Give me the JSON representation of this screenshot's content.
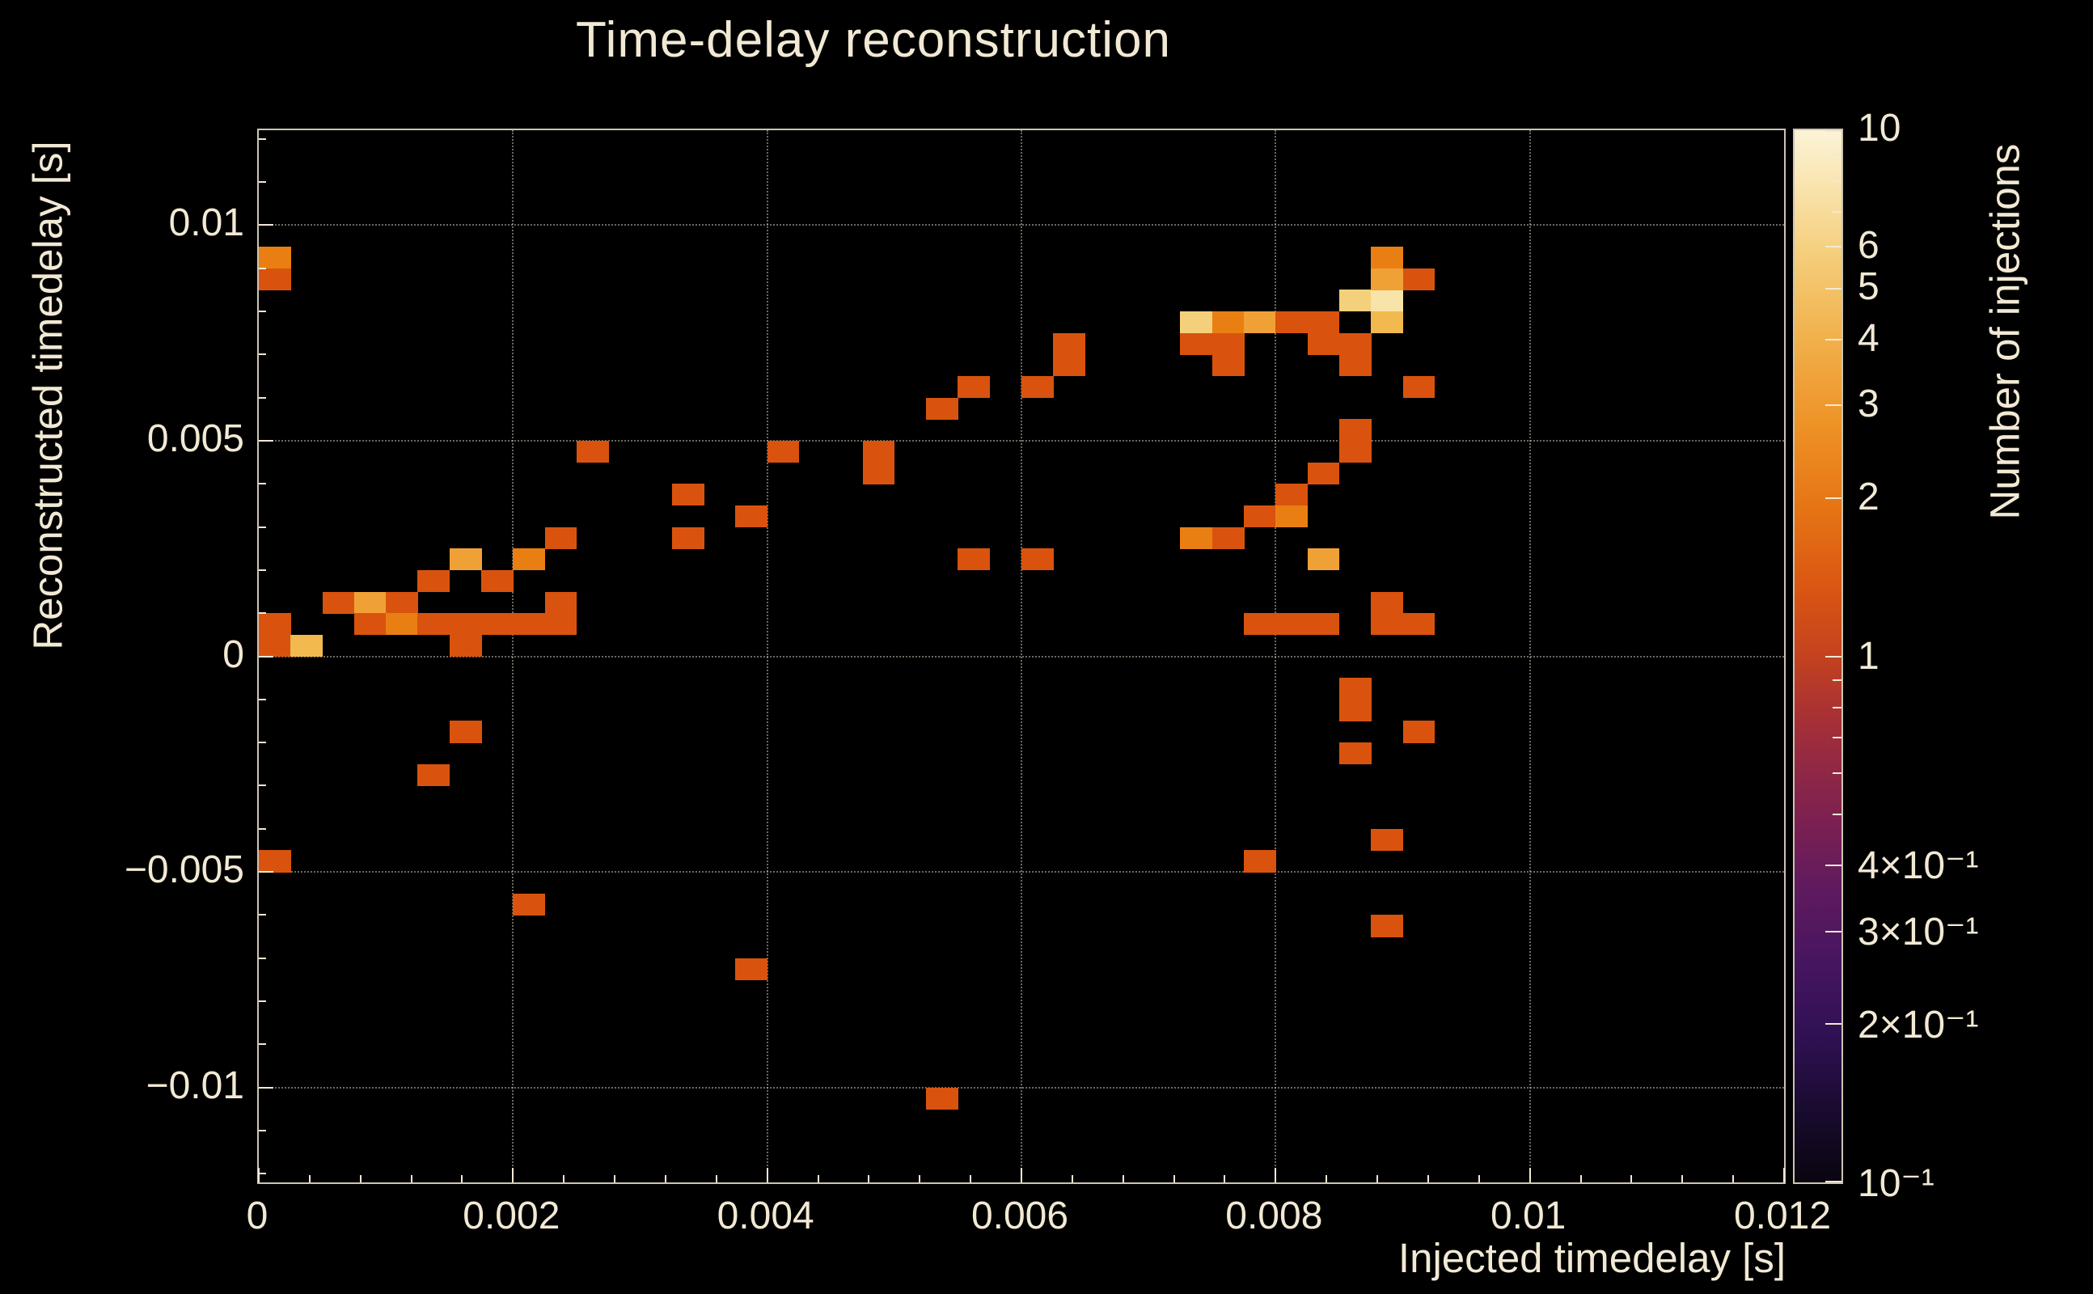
{
  "title": "Time-delay reconstruction",
  "axes": {
    "x": {
      "label": "Injected timedelay [s]",
      "ticks": [
        {
          "v": 0,
          "label": "0"
        },
        {
          "v": 0.002,
          "label": "0.002"
        },
        {
          "v": 0.004,
          "label": "0.004"
        },
        {
          "v": 0.006,
          "label": "0.006"
        },
        {
          "v": 0.008,
          "label": "0.008"
        },
        {
          "v": 0.01,
          "label": "0.01"
        },
        {
          "v": 0.012,
          "label": "0.012"
        }
      ]
    },
    "y": {
      "label": "Reconstructed timedelay [s]",
      "ticks": [
        {
          "v": 0.01,
          "label": "0.01"
        },
        {
          "v": 0.005,
          "label": "0.005"
        },
        {
          "v": 0,
          "label": "0"
        },
        {
          "v": -0.005,
          "label": "−0.005"
        },
        {
          "v": -0.01,
          "label": "−0.01"
        }
      ]
    }
  },
  "colorbar": {
    "label": "Number of injections",
    "scale": "log",
    "range": [
      0.1,
      10
    ],
    "ticks": [
      {
        "v": 10,
        "label": "10"
      },
      {
        "v": 6,
        "label": "6"
      },
      {
        "v": 5,
        "label": "5"
      },
      {
        "v": 4,
        "label": "4"
      },
      {
        "v": 3,
        "label": "3"
      },
      {
        "v": 2,
        "label": "2"
      },
      {
        "v": 1,
        "label": "1"
      },
      {
        "v": 0.4,
        "label": "4×10⁻¹"
      },
      {
        "v": 0.3,
        "label": "3×10⁻¹"
      },
      {
        "v": 0.2,
        "label": "2×10⁻¹"
      },
      {
        "v": 0.1,
        "label": "10⁻¹"
      }
    ],
    "gradient_stops": [
      [
        "0",
        "#0a0510"
      ],
      [
        "7",
        "#1a0b30"
      ],
      [
        "14",
        "#2f1154"
      ],
      [
        "21",
        "#471560"
      ],
      [
        "28",
        "#601a5e"
      ],
      [
        "34",
        "#7a2052"
      ],
      [
        "40",
        "#942943"
      ],
      [
        "45",
        "#ab3232"
      ],
      [
        "50",
        "#c4421f"
      ],
      [
        "56",
        "#d85413"
      ],
      [
        "64",
        "#e67414"
      ],
      [
        "72",
        "#ee9226"
      ],
      [
        "80",
        "#f1b04a"
      ],
      [
        "88",
        "#f5cd7a"
      ],
      [
        "95",
        "#f9e5b0"
      ],
      [
        "100",
        "#fcf3d8"
      ]
    ]
  },
  "colors": {
    "background": "#000000",
    "text": "#f2e9d4",
    "grid": "rgba(242,233,212,0.45)",
    "frame": "rgba(240,232,210,0.85)"
  },
  "chart_data": {
    "type": "heatmap",
    "title": "Time-delay reconstruction",
    "xlabel": "Injected timedelay [s]",
    "ylabel": "Reconstructed timedelay [s]",
    "zlabel": "Number of injections",
    "xlim": [
      0,
      0.012
    ],
    "ylim": [
      -0.0122,
      0.0122
    ],
    "zscale": "log",
    "zlim": [
      0.1,
      10
    ],
    "x_bin_width": 0.00025,
    "y_bin_width": 0.0005,
    "grid": true,
    "legend_position": "right-colorbar",
    "palette": {
      "1": "#d9530e",
      "2": "#e97f12",
      "3": "#f0a135",
      "4": "#f2b94f",
      "5": "#f5d07c",
      "6": "#f8e3a8"
    },
    "cells": [
      [
        0.000125,
        0.00925,
        2
      ],
      [
        0.000125,
        0.00875,
        1
      ],
      [
        0.000125,
        0.00075,
        1
      ],
      [
        0.000125,
        0.00025,
        1
      ],
      [
        0.000375,
        0.00025,
        4
      ],
      [
        0.000625,
        0.00125,
        1
      ],
      [
        0.000875,
        0.00125,
        3
      ],
      [
        0.001125,
        0.00125,
        1
      ],
      [
        0.000875,
        0.00075,
        1
      ],
      [
        0.001125,
        0.00075,
        2
      ],
      [
        0.001375,
        0.00075,
        1
      ],
      [
        0.001625,
        0.00075,
        1
      ],
      [
        0.001375,
        0.00175,
        1
      ],
      [
        0.001625,
        0.00225,
        3
      ],
      [
        0.001625,
        0.00025,
        1
      ],
      [
        0.001875,
        0.00175,
        1
      ],
      [
        0.001875,
        0.00075,
        1
      ],
      [
        0.002125,
        0.00225,
        2
      ],
      [
        0.002125,
        0.00075,
        1
      ],
      [
        0.002375,
        0.00275,
        1
      ],
      [
        0.002375,
        0.00125,
        1
      ],
      [
        0.002375,
        0.00075,
        1
      ],
      [
        0.002625,
        0.00475,
        1
      ],
      [
        0.003375,
        0.00375,
        1
      ],
      [
        0.003375,
        0.00275,
        1
      ],
      [
        0.003875,
        0.00325,
        1
      ],
      [
        0.004125,
        0.00475,
        1
      ],
      [
        0.004875,
        0.00475,
        1
      ],
      [
        0.004875,
        0.00425,
        1
      ],
      [
        0.005375,
        0.00575,
        1
      ],
      [
        0.005625,
        0.00625,
        1
      ],
      [
        0.005625,
        0.00225,
        1
      ],
      [
        0.006125,
        0.00625,
        1
      ],
      [
        0.006125,
        0.00225,
        1
      ],
      [
        0.006375,
        0.00725,
        1
      ],
      [
        0.006375,
        0.00675,
        1
      ],
      [
        0.007375,
        0.00775,
        5
      ],
      [
        0.007375,
        0.00725,
        1
      ],
      [
        0.007625,
        0.00775,
        2
      ],
      [
        0.007625,
        0.00725,
        1
      ],
      [
        0.007625,
        0.00675,
        1
      ],
      [
        0.007875,
        0.00775,
        3
      ],
      [
        0.008125,
        0.00775,
        1
      ],
      [
        0.008375,
        0.00775,
        1
      ],
      [
        0.008375,
        0.00725,
        1
      ],
      [
        0.008625,
        0.00725,
        1
      ],
      [
        0.008625,
        0.00675,
        1
      ],
      [
        0.008625,
        0.00825,
        5
      ],
      [
        0.008875,
        0.00825,
        6
      ],
      [
        0.008875,
        0.00875,
        3
      ],
      [
        0.008875,
        0.00925,
        2
      ],
      [
        0.009125,
        0.00875,
        1
      ],
      [
        0.008875,
        0.00775,
        4
      ],
      [
        0.009125,
        0.00625,
        1
      ],
      [
        0.008625,
        0.00525,
        1
      ],
      [
        0.008625,
        0.00475,
        1
      ],
      [
        0.008375,
        0.00425,
        1
      ],
      [
        0.007875,
        0.00325,
        1
      ],
      [
        0.008125,
        0.00325,
        2
      ],
      [
        0.008125,
        0.00375,
        1
      ],
      [
        0.007375,
        0.00275,
        2
      ],
      [
        0.007625,
        0.00275,
        1
      ],
      [
        0.008375,
        0.00225,
        3
      ],
      [
        0.007875,
        0.00075,
        1
      ],
      [
        0.008125,
        0.00075,
        1
      ],
      [
        0.008375,
        0.00075,
        1
      ],
      [
        0.008875,
        0.00125,
        1
      ],
      [
        0.008875,
        0.00075,
        1
      ],
      [
        0.009125,
        0.00075,
        1
      ],
      [
        0.008625,
        -0.00075,
        1
      ],
      [
        0.008625,
        -0.00125,
        1
      ],
      [
        0.008625,
        -0.00225,
        1
      ],
      [
        0.009125,
        -0.00175,
        1
      ],
      [
        0.008875,
        -0.00425,
        1
      ],
      [
        0.007875,
        -0.00475,
        1
      ],
      [
        0.008875,
        -0.00625,
        1
      ],
      [
        0.001625,
        -0.00175,
        1
      ],
      [
        0.001375,
        -0.00275,
        1
      ],
      [
        0.000125,
        -0.00475,
        1
      ],
      [
        0.002125,
        -0.00575,
        1
      ],
      [
        0.003875,
        -0.00725,
        1
      ],
      [
        0.005375,
        -0.01025,
        1
      ]
    ]
  }
}
